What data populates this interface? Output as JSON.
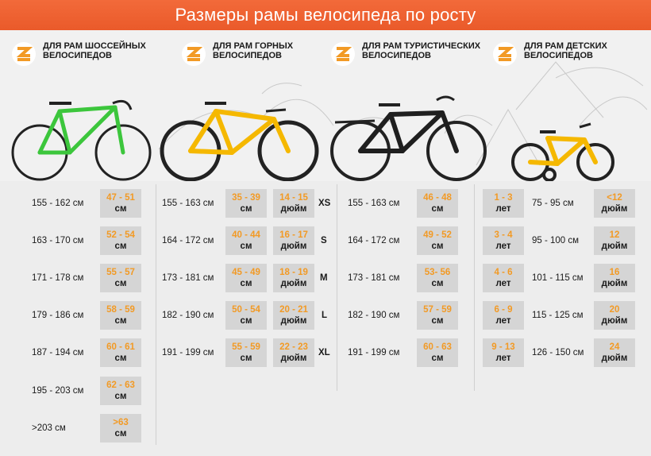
{
  "header": {
    "title": "Размеры рамы велосипеда по росту"
  },
  "categories": [
    {
      "label": "ДЛЯ РАМ ШОССЕЙНЫХ ВЕЛОСИПЕДОВ"
    },
    {
      "label": "ДЛЯ РАМ ГОРНЫХ ВЕЛОСИПЕДОВ"
    },
    {
      "label": "ДЛЯ РАМ ТУРИСТИЧЕСКИХ ВЕЛОСИПЕДОВ"
    },
    {
      "label": "ДЛЯ РАМ ДЕТСКИХ ВЕЛОСИПЕДОВ"
    }
  ],
  "colors": {
    "banner": "#f0602f",
    "accent": "#f29a25",
    "road_bike": "#3cc63c",
    "mtb_bike": "#f5b800",
    "city_bike": "#1f1f1f",
    "kids_bike": "#f5b800"
  },
  "road": [
    {
      "height": "155 - 162 см",
      "frame": "47 - 51",
      "unit": "см"
    },
    {
      "height": "163 - 170 см",
      "frame": "52 - 54",
      "unit": "см"
    },
    {
      "height": "171 - 178 см",
      "frame": "55 - 57",
      "unit": "см"
    },
    {
      "height": "179 - 186 см",
      "frame": "58 - 59",
      "unit": "см"
    },
    {
      "height": "187 - 194 см",
      "frame": "60 - 61",
      "unit": "см"
    },
    {
      "height": "195 - 203 см",
      "frame": "62 - 63",
      "unit": "см"
    },
    {
      "height": ">203 см",
      "frame": ">63",
      "unit": "см"
    }
  ],
  "mtb": [
    {
      "height": "155 - 163 см",
      "cm": "35 - 39",
      "cm_unit": "см",
      "inch": "14 - 15",
      "inch_unit": "дюйм",
      "size": "XS"
    },
    {
      "height": "164 - 172 см",
      "cm": "40 - 44",
      "cm_unit": "см",
      "inch": "16 - 17",
      "inch_unit": "дюйм",
      "size": "S"
    },
    {
      "height": "173 - 181 см",
      "cm": "45 - 49",
      "cm_unit": "см",
      "inch": "18 - 19",
      "inch_unit": "дюйм",
      "size": "M"
    },
    {
      "height": "182 - 190 см",
      "cm": "50 - 54",
      "cm_unit": "см",
      "inch": "20 - 21",
      "inch_unit": "дюйм",
      "size": "L"
    },
    {
      "height": "191 - 199 см",
      "cm": "55 - 59",
      "cm_unit": "см",
      "inch": "22 - 23",
      "inch_unit": "дюйм",
      "size": "XL"
    }
  ],
  "touring": [
    {
      "height": "155 - 163 см",
      "frame": "46 - 48",
      "unit": "см"
    },
    {
      "height": "164 - 172 см",
      "frame": "49 - 52",
      "unit": "см"
    },
    {
      "height": "173 - 181 см",
      "frame": "53- 56",
      "unit": "см"
    },
    {
      "height": "182 - 190 см",
      "frame": "57 - 59",
      "unit": "см"
    },
    {
      "height": "191 - 199 см",
      "frame": "60 - 63",
      "unit": "см"
    }
  ],
  "kids": [
    {
      "age": "1 - 3",
      "age_unit": "лет",
      "height": "75 - 95 см",
      "wheel": "<12",
      "wheel_unit": "дюйм"
    },
    {
      "age": "3 - 4",
      "age_unit": "лет",
      "height": "95 - 100 см",
      "wheel": "12",
      "wheel_unit": "дюйм"
    },
    {
      "age": "4 - 6",
      "age_unit": "лет",
      "height": "101 - 115 см",
      "wheel": "16",
      "wheel_unit": "дюйм"
    },
    {
      "age": "6 - 9",
      "age_unit": "лет",
      "height": "115 - 125 см",
      "wheel": "20",
      "wheel_unit": "дюйм"
    },
    {
      "age": "9 - 13",
      "age_unit": "лет",
      "height": "126 - 150 см",
      "wheel": "24",
      "wheel_unit": "дюйм"
    }
  ]
}
